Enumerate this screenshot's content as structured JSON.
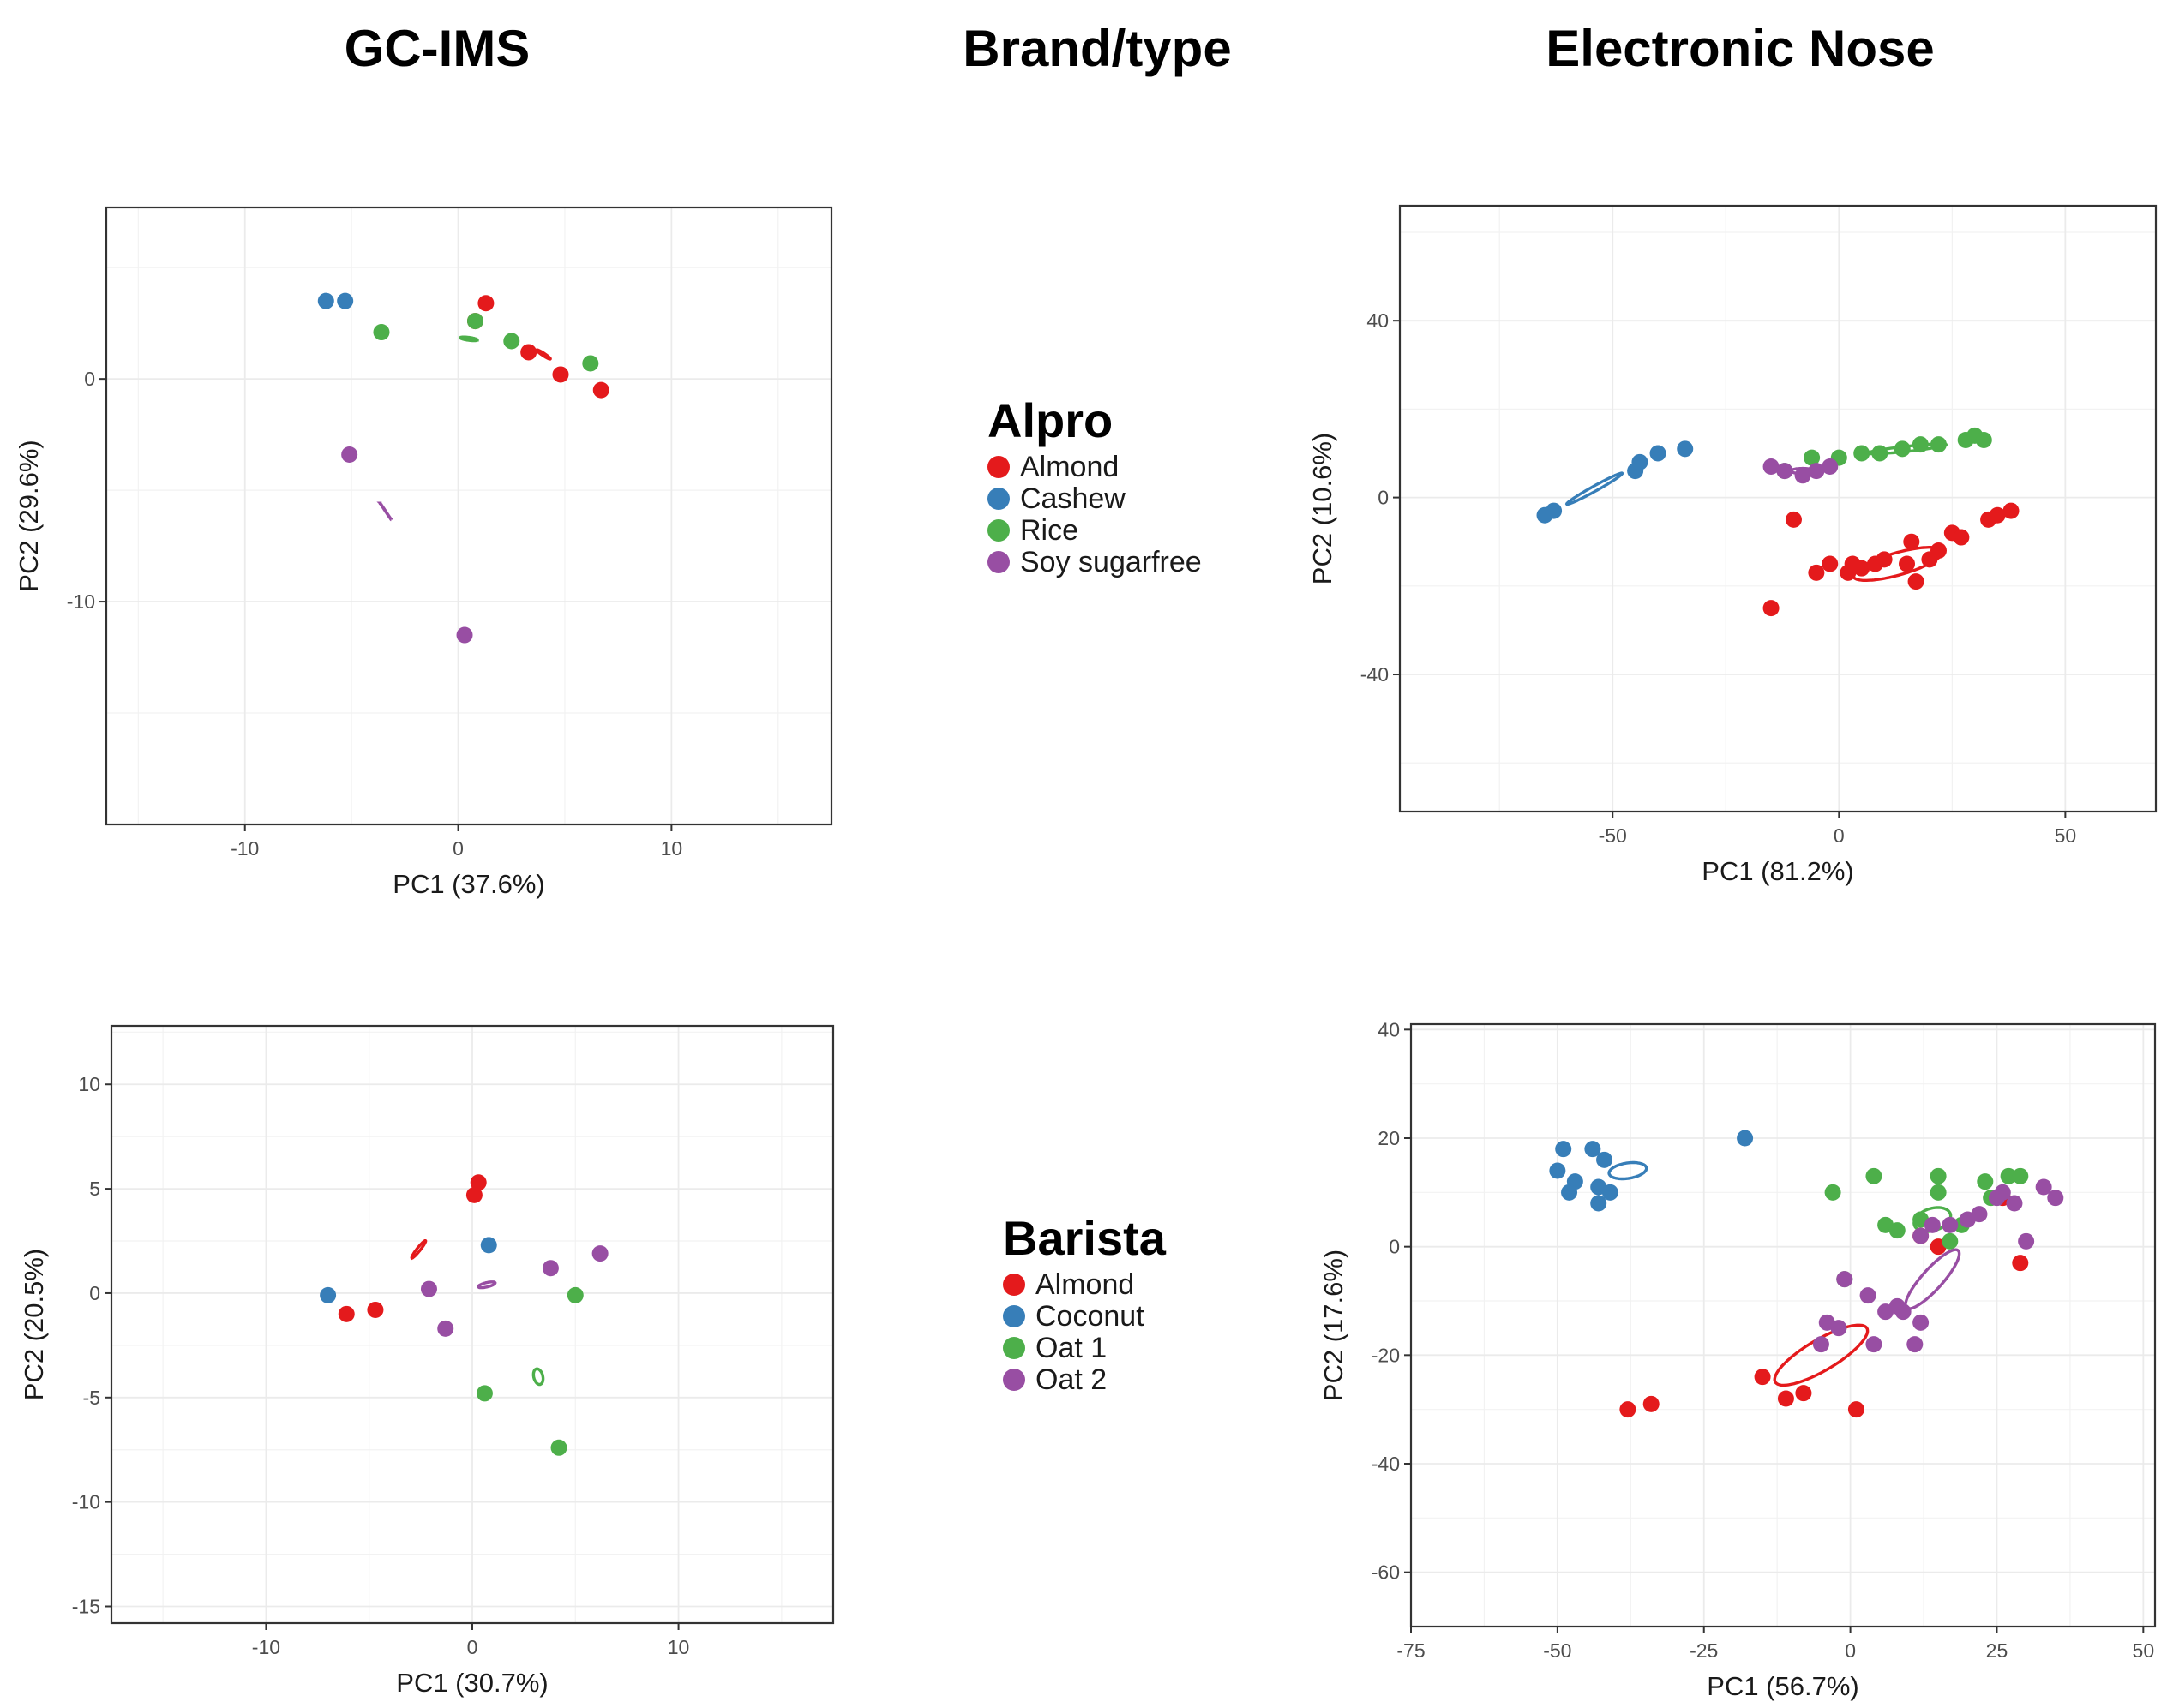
{
  "header": {
    "left": "GC-IMS",
    "center": "Brand/type",
    "right": "Electronic Nose"
  },
  "legends": [
    {
      "title": "Alpro",
      "items": [
        {
          "label": "Almond",
          "color": "#e41a1c"
        },
        {
          "label": "Cashew",
          "color": "#377eb8"
        },
        {
          "label": "Rice",
          "color": "#4daf4a"
        },
        {
          "label": "Soy sugarfree",
          "color": "#984ea3"
        }
      ]
    },
    {
      "title": "Barista",
      "items": [
        {
          "label": "Almond",
          "color": "#e41a1c"
        },
        {
          "label": "Coconut",
          "color": "#377eb8"
        },
        {
          "label": "Oat 1",
          "color": "#4daf4a"
        },
        {
          "label": "Oat 2",
          "color": "#984ea3"
        }
      ]
    }
  ],
  "chart_data": [
    {
      "type": "scatter",
      "title": "GC-IMS Alpro",
      "xlabel": "PC1 (37.6%)",
      "ylabel": "PC2 (29.6%)",
      "xlim": [
        -16.5,
        17.5
      ],
      "ylim": [
        -20,
        7.7
      ],
      "xticks": [
        -10,
        0,
        10
      ],
      "yticks": [
        0,
        -10
      ],
      "grid": true,
      "series": [
        {
          "name": "Almond",
          "color": "#e41a1c",
          "points": [
            [
              1.3,
              3.4
            ],
            [
              3.3,
              1.2
            ],
            [
              4.8,
              0.2
            ],
            [
              6.7,
              -0.5
            ],
            [
              0.8,
              2.6
            ]
          ],
          "ellipse": {
            "cx": 4.0,
            "cy": 1.1,
            "a": 9.5,
            "b": 1.45,
            "angle": -33.4
          }
        },
        {
          "name": "Cashew",
          "color": "#377eb8",
          "points": [
            [
              -6.2,
              3.5
            ],
            [
              -5.3,
              3.5
            ]
          ],
          "ellipse": null
        },
        {
          "name": "Rice",
          "color": "#4daf4a",
          "points": [
            [
              -3.6,
              2.1
            ],
            [
              0.8,
              2.6
            ],
            [
              2.5,
              1.7
            ],
            [
              6.2,
              0.7
            ]
          ],
          "ellipse": {
            "cx": 0.5,
            "cy": 1.8,
            "a": 10.1,
            "b": 1.75,
            "angle": -7.5
          }
        },
        {
          "name": "Soy sugarfree",
          "color": "#984ea3",
          "points": [
            [
              -5.1,
              -3.4
            ],
            [
              0.3,
              -11.5
            ]
          ],
          "ellipse": {
            "cx": -3.4,
            "cy": -5.95,
            "a": 11.6,
            "b": 0.2,
            "angle": -56.3
          }
        }
      ]
    },
    {
      "type": "scatter",
      "title": "Electronic Nose Alpro",
      "xlabel": "PC1 (81.2%)",
      "ylabel": "PC2 (10.6%)",
      "xlim": [
        -97,
        70
      ],
      "ylim": [
        -71,
        66
      ],
      "xticks": [
        -50,
        0,
        50
      ],
      "yticks": [
        40,
        0,
        -40
      ],
      "grid": true,
      "series": [
        {
          "name": "Almond",
          "color": "#e41a1c",
          "points": [
            [
              -10,
              -5
            ],
            [
              -15,
              -25
            ],
            [
              -5,
              -17
            ],
            [
              -2,
              -15
            ],
            [
              2,
              -17
            ],
            [
              3,
              -15
            ],
            [
              5,
              -16
            ],
            [
              8,
              -15
            ],
            [
              10,
              -14
            ],
            [
              15,
              -15
            ],
            [
              17,
              -19
            ],
            [
              20,
              -14
            ],
            [
              22,
              -12
            ],
            [
              25,
              -8
            ],
            [
              27,
              -9
            ],
            [
              33,
              -5
            ],
            [
              35,
              -4
            ],
            [
              38,
              -3
            ],
            [
              16,
              -10
            ]
          ],
          "ellipse": {
            "cx": 13,
            "cy": -15,
            "a": 54,
            "b": 13,
            "angle": 15.8
          }
        },
        {
          "name": "Cashew",
          "color": "#377eb8",
          "points": [
            [
              -65,
              -4
            ],
            [
              -63,
              -3
            ],
            [
              -45,
              6
            ],
            [
              -44,
              8
            ],
            [
              -40,
              10
            ],
            [
              -34,
              11
            ]
          ],
          "ellipse": {
            "cx": -54,
            "cy": 2,
            "a": 37,
            "b": 3,
            "angle": 29.1
          }
        },
        {
          "name": "Rice",
          "color": "#4daf4a",
          "points": [
            [
              -12,
              6
            ],
            [
              -6,
              9
            ],
            [
              0,
              9
            ],
            [
              5,
              10
            ],
            [
              9,
              10
            ],
            [
              14,
              11
            ],
            [
              18,
              12
            ],
            [
              22,
              12
            ],
            [
              28,
              13
            ],
            [
              30,
              14
            ],
            [
              32,
              13
            ]
          ],
          "ellipse": {
            "cx": 15,
            "cy": 11,
            "a": 46,
            "b": 3,
            "angle": 6.2
          }
        },
        {
          "name": "Soy sugarfree",
          "color": "#984ea3",
          "points": [
            [
              -15,
              7
            ],
            [
              -12,
              6
            ],
            [
              -8,
              5
            ],
            [
              -5,
              6
            ],
            [
              -2,
              7
            ]
          ],
          "ellipse": {
            "cx": -8,
            "cy": 6,
            "a": 14,
            "b": 3,
            "angle": 0
          }
        }
      ]
    },
    {
      "type": "scatter",
      "title": "GC-IMS Barista",
      "xlabel": "PC1 (30.7%)",
      "ylabel": "PC2 (20.5%)",
      "xlim": [
        -17.5,
        17.5
      ],
      "ylim": [
        -15.8,
        12.8
      ],
      "xticks": [
        -10,
        0,
        10
      ],
      "yticks": [
        10,
        5,
        0,
        -5,
        -10,
        -15
      ],
      "grid": true,
      "series": [
        {
          "name": "Almond",
          "color": "#e41a1c",
          "points": [
            [
              0.3,
              5.3
            ],
            [
              0.1,
              4.7
            ],
            [
              -6.1,
              -1.0
            ],
            [
              -4.7,
              -0.8
            ]
          ],
          "ellipse": {
            "cx": -2.6,
            "cy": 2.1,
            "a": 12.8,
            "b": 1.95,
            "angle": 51.5
          }
        },
        {
          "name": "Coconut",
          "color": "#377eb8",
          "points": [
            [
              -7.0,
              -0.1
            ],
            [
              0.8,
              2.3
            ]
          ],
          "ellipse": null
        },
        {
          "name": "Oat 1",
          "color": "#4daf4a",
          "points": [
            [
              5.0,
              -0.1
            ],
            [
              0.6,
              -4.8
            ],
            [
              4.2,
              -7.4
            ]
          ],
          "ellipse": {
            "cx": 3.2,
            "cy": -4.0,
            "a": 9.3,
            "b": 5.3,
            "angle": 103.6
          }
        },
        {
          "name": "Oat 2",
          "color": "#984ea3",
          "points": [
            [
              -2.1,
              0.2
            ],
            [
              -1.3,
              -1.7
            ],
            [
              3.8,
              1.2
            ],
            [
              6.2,
              1.9
            ]
          ],
          "ellipse": {
            "cx": 0.7,
            "cy": 0.4,
            "a": 10.1,
            "b": 2.55,
            "angle": 13.5
          }
        }
      ]
    },
    {
      "type": "scatter",
      "title": "Electronic Nose Barista",
      "xlabel": "PC1 (56.7%)",
      "ylabel": "PC2 (17.6%)",
      "xlim": [
        -75,
        52
      ],
      "ylim": [
        -70,
        41
      ],
      "xticks": [
        -75,
        -50,
        -25,
        0,
        25,
        50
      ],
      "yticks": [
        40,
        20,
        0,
        -20,
        -40,
        -60
      ],
      "grid": true,
      "series": [
        {
          "name": "Almond",
          "color": "#e41a1c",
          "points": [
            [
              -38,
              -30
            ],
            [
              -34,
              -29
            ],
            [
              -15,
              -24
            ],
            [
              -11,
              -28
            ],
            [
              -8,
              -27
            ],
            [
              1,
              -30
            ],
            [
              15,
              0
            ],
            [
              26,
              9
            ],
            [
              29,
              -3
            ],
            [
              12,
              2
            ]
          ],
          "ellipse": {
            "cx": -5,
            "cy": -20,
            "a": 62,
            "b": 18,
            "angle": 30.5
          }
        },
        {
          "name": "Coconut",
          "color": "#377eb8",
          "points": [
            [
              -49,
              18
            ],
            [
              -44,
              18
            ],
            [
              -42,
              16
            ],
            [
              -50,
              14
            ],
            [
              -47,
              12
            ],
            [
              -48,
              10
            ],
            [
              -43,
              11
            ],
            [
              -41,
              10
            ],
            [
              -43,
              8
            ],
            [
              -18,
              20
            ]
          ],
          "ellipse": {
            "cx": -38,
            "cy": 14,
            "a": 22,
            "b": 9,
            "angle": 8.6
          }
        },
        {
          "name": "Oat 1",
          "color": "#4daf4a",
          "points": [
            [
              -3,
              10
            ],
            [
              4,
              13
            ],
            [
              15,
              13
            ],
            [
              15,
              10
            ],
            [
              23,
              12
            ],
            [
              27,
              13
            ],
            [
              29,
              13
            ],
            [
              24,
              9
            ],
            [
              6,
              4
            ],
            [
              8,
              3
            ],
            [
              12,
              5
            ],
            [
              17,
              1
            ],
            [
              19,
              4
            ],
            [
              -1,
              -6
            ]
          ],
          "ellipse": {
            "cx": 14,
            "cy": 5,
            "a": 22,
            "b": 13,
            "angle": 17.3
          }
        },
        {
          "name": "Oat 2",
          "color": "#984ea3",
          "points": [
            [
              -5,
              -18
            ],
            [
              -4,
              -14
            ],
            [
              -2,
              -15
            ],
            [
              3,
              -9
            ],
            [
              4,
              -18
            ],
            [
              6,
              -12
            ],
            [
              8,
              -11
            ],
            [
              9,
              -12
            ],
            [
              11,
              -18
            ],
            [
              12,
              -14
            ],
            [
              12,
              2
            ],
            [
              14,
              4
            ],
            [
              17,
              4
            ],
            [
              20,
              5
            ],
            [
              22,
              6
            ],
            [
              25,
              9
            ],
            [
              26,
              10
            ],
            [
              28,
              8
            ],
            [
              30,
              1
            ],
            [
              33,
              11
            ],
            [
              35,
              9
            ],
            [
              -1,
              -6
            ]
          ],
          "ellipse": {
            "cx": 14,
            "cy": -6,
            "a": 45,
            "b": 12,
            "angle": 48.1
          }
        }
      ]
    }
  ]
}
